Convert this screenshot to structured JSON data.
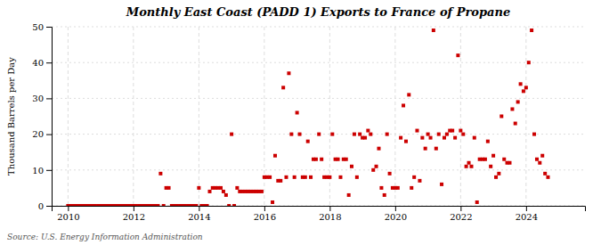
{
  "chart_data": {
    "type": "scatter",
    "title": "Monthly East Coast (PADD 1) Exports to France of Propane",
    "ylabel": "Thousand Barrels per Day",
    "source": "Source: U.S. Energy Information Administration",
    "color": "#cc0000",
    "marker": "square",
    "grid": true,
    "xlim": [
      2009.5,
      2025.8
    ],
    "xticks": [
      2010,
      2012,
      2014,
      2016,
      2018,
      2020,
      2022,
      2024
    ],
    "ylim": [
      0,
      50
    ],
    "yticks": [
      0,
      10,
      20,
      30,
      40,
      50
    ],
    "x": [
      2010.0,
      2010.08,
      2010.17,
      2010.25,
      2010.33,
      2010.42,
      2010.5,
      2010.58,
      2010.67,
      2010.75,
      2010.83,
      2010.92,
      2011.0,
      2011.08,
      2011.17,
      2011.25,
      2011.33,
      2011.42,
      2011.5,
      2011.58,
      2011.67,
      2011.75,
      2011.83,
      2011.92,
      2012.0,
      2012.08,
      2012.17,
      2012.25,
      2012.33,
      2012.42,
      2012.5,
      2012.58,
      2012.67,
      2012.75,
      2012.83,
      2012.92,
      2013.0,
      2013.08,
      2013.17,
      2013.25,
      2013.33,
      2013.42,
      2013.5,
      2013.58,
      2013.67,
      2013.75,
      2013.83,
      2013.92,
      2014.0,
      2014.08,
      2014.17,
      2014.25,
      2014.33,
      2014.42,
      2014.5,
      2014.58,
      2014.67,
      2014.75,
      2014.83,
      2014.92,
      2015.0,
      2015.08,
      2015.17,
      2015.25,
      2015.33,
      2015.42,
      2015.5,
      2015.58,
      2015.67,
      2015.75,
      2015.83,
      2015.92,
      2016.0,
      2016.08,
      2016.17,
      2016.25,
      2016.33,
      2016.42,
      2016.5,
      2016.58,
      2016.67,
      2016.75,
      2016.83,
      2016.92,
      2017.0,
      2017.08,
      2017.17,
      2017.25,
      2017.33,
      2017.42,
      2017.5,
      2017.58,
      2017.67,
      2017.75,
      2017.83,
      2017.92,
      2018.0,
      2018.08,
      2018.17,
      2018.25,
      2018.33,
      2018.42,
      2018.5,
      2018.58,
      2018.67,
      2018.75,
      2018.83,
      2018.92,
      2019.0,
      2019.08,
      2019.17,
      2019.25,
      2019.33,
      2019.42,
      2019.5,
      2019.58,
      2019.67,
      2019.75,
      2019.83,
      2019.92,
      2020.0,
      2020.08,
      2020.17,
      2020.25,
      2020.33,
      2020.42,
      2020.5,
      2020.58,
      2020.67,
      2020.75,
      2020.83,
      2020.92,
      2021.0,
      2021.08,
      2021.17,
      2021.25,
      2021.33,
      2021.42,
      2021.5,
      2021.58,
      2021.67,
      2021.75,
      2021.83,
      2021.92,
      2022.0,
      2022.08,
      2022.17,
      2022.25,
      2022.33,
      2022.42,
      2022.5,
      2022.58,
      2022.67,
      2022.75,
      2022.83,
      2022.92,
      2023.0,
      2023.08,
      2023.17,
      2023.25,
      2023.33,
      2023.42,
      2023.5,
      2023.58,
      2023.67,
      2023.75,
      2023.83,
      2023.92,
      2024.0,
      2024.08,
      2024.17,
      2024.25,
      2024.33,
      2024.42,
      2024.5,
      2024.58,
      2024.67
    ],
    "values": [
      0,
      0,
      0,
      0,
      0,
      0,
      0,
      0,
      0,
      0,
      0,
      0,
      0,
      0,
      0,
      0,
      0,
      0,
      0,
      0,
      0,
      0,
      0,
      0,
      0,
      0,
      0,
      0,
      0,
      0,
      0,
      0,
      0,
      0,
      9,
      0,
      5,
      5,
      0,
      0,
      0,
      0,
      0,
      0,
      0,
      0,
      0,
      0,
      5,
      0,
      0,
      0,
      4,
      5,
      5,
      5,
      5,
      4,
      3,
      0,
      20,
      0,
      5,
      4,
      4,
      4,
      4,
      4,
      4,
      4,
      4,
      4,
      8,
      8,
      8,
      1,
      14,
      7,
      7,
      33,
      8,
      37,
      20,
      8,
      26,
      20,
      8,
      8,
      18,
      8,
      13,
      13,
      20,
      13,
      8,
      8,
      8,
      20,
      13,
      13,
      8,
      13,
      13,
      3,
      11,
      20,
      8,
      20,
      19,
      19,
      21,
      20,
      10,
      11,
      16,
      5,
      3,
      20,
      9,
      5,
      5,
      5,
      19,
      28,
      18,
      31,
      5,
      8,
      21,
      7,
      19,
      16,
      20,
      19,
      49,
      16,
      20,
      6,
      19,
      20,
      21,
      21,
      19,
      42,
      21,
      20,
      11,
      12,
      11,
      19,
      1,
      13,
      13,
      13,
      18,
      11,
      14,
      8,
      9,
      25,
      13,
      12,
      12,
      27,
      23,
      29,
      34,
      32,
      33,
      40,
      49,
      20,
      13,
      12,
      14,
      9,
      8
    ]
  }
}
